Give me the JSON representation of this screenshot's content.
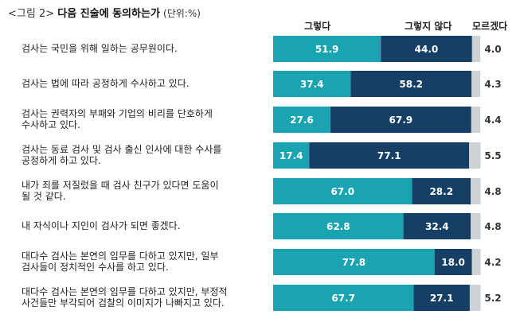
{
  "header": {
    "fig_label": "<그림 2>",
    "title": "다음 진술에 동의하는가",
    "unit": "(단위:%)"
  },
  "chart_data": {
    "type": "bar",
    "orientation": "horizontal",
    "stacked": true,
    "title": "다음 진술에 동의하는가",
    "unit": "(단위:%)",
    "legend": [
      "그렇다",
      "그렇지 않다",
      "모르겠다"
    ],
    "categories": [
      "검사는 국민을 위해 일하는 공무원이다.",
      "검사는 법에 따라 공정하게 수사하고 있다.",
      "검사는 권력자의 부패와 기업의 비리를 단호하게 수사하고 있다.",
      "검사는 동료 검사 및 검사 출신 인사에 대한 수사를 공정하게 하고 있다.",
      "내가 죄를 저질렀을 때 검사 친구가 있다면 도움이 될 것 같다.",
      "내 자식이나 지인이 검사가 되면 좋겠다.",
      "대다수 검사는 본연의 임무를 다하고 있지만, 일부 검사들이 정치적인 수사를 하고 있다.",
      "대다수 검사는 본연의 임무를 다하고 있지만, 부정적 사건들만 부각되어 검찰의 이미지가 나빠지고 있다."
    ],
    "label_lines": [
      [
        "검사는 국민을 위해 일하는 공무원이다."
      ],
      [
        "검사는 법에 따라 공정하게 수사하고 있다."
      ],
      [
        "검사는 권력자의 부패와 기업의 비리를 단호하게",
        "수사하고 있다."
      ],
      [
        "검사는 동료 검사 및 검사 출신 인사에 대한 수사를",
        "공정하게 하고 있다."
      ],
      [
        "내가 죄를 저질렀을 때 검사 친구가 있다면 도움이",
        "될 것 같다."
      ],
      [
        "내 자식이나 지인이 검사가 되면 좋겠다."
      ],
      [
        "대다수 검사는 본연의 임무를 다하고 있지만, 일부",
        "검사들이 정치적인 수사를 하고 있다."
      ],
      [
        "대다수 검사는 본연의 임무를 다하고 있지만, 부정적",
        "사건들만 부각되어 검찰의 이미지가 나빠지고 있다."
      ]
    ],
    "series": [
      {
        "name": "그렇다",
        "color": "#1aa3b0",
        "values": [
          51.9,
          37.4,
          27.6,
          17.4,
          67.0,
          62.8,
          77.8,
          67.7
        ]
      },
      {
        "name": "그렇지 않다",
        "color": "#163f66",
        "values": [
          44.0,
          58.2,
          67.9,
          77.1,
          28.2,
          32.4,
          18.0,
          27.1
        ]
      },
      {
        "name": "모르겠다",
        "color": "#cfd2d4",
        "values": [
          4.0,
          4.3,
          4.4,
          5.5,
          4.8,
          4.8,
          4.2,
          5.2
        ]
      }
    ],
    "value_labels": [
      [
        "51.9",
        "44.0",
        "4.0"
      ],
      [
        "37.4",
        "58.2",
        "4.3"
      ],
      [
        "27.6",
        "67.9",
        "4.4"
      ],
      [
        "17.4",
        "77.1",
        "5.5"
      ],
      [
        "67.0",
        "28.2",
        "4.8"
      ],
      [
        "62.8",
        "32.4",
        "4.8"
      ],
      [
        "77.8",
        "18.0",
        "4.2"
      ],
      [
        "67.7",
        "27.1",
        "5.2"
      ]
    ],
    "xlim": [
      0,
      100
    ],
    "grid": false
  }
}
